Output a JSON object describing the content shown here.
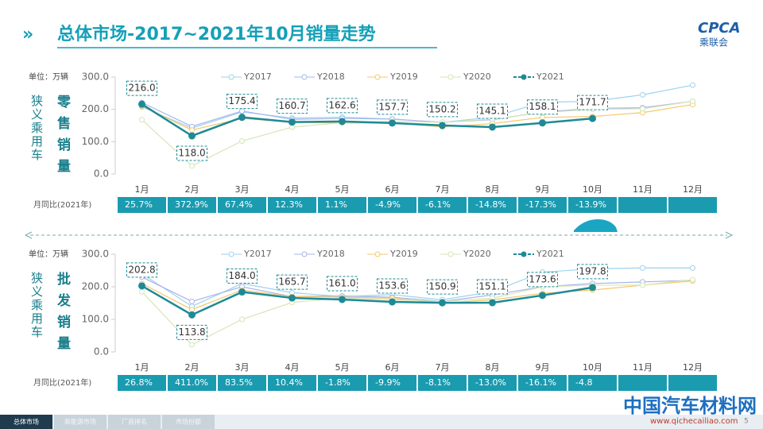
{
  "header": {
    "title": "总体市场-2017~2021年10月销量走势",
    "logo": "CPCA",
    "logo_sub": "乘联会"
  },
  "chart_data": [
    {
      "type": "line",
      "unit": "单位：万辆",
      "group": "狭义乘用车",
      "subtitle": "零售销量",
      "categories": [
        "1月",
        "2月",
        "3月",
        "4月",
        "5月",
        "6月",
        "7月",
        "8月",
        "9月",
        "10月",
        "11月",
        "12月"
      ],
      "ylim": [
        0,
        300
      ],
      "yticks": [
        {
          "value": 0,
          "label": "0.0"
        },
        {
          "value": 100,
          "label": "100.0"
        },
        {
          "value": 200,
          "label": "200.0"
        },
        {
          "value": 300,
          "label": "300.0"
        }
      ],
      "series": [
        {
          "name": "Y2017",
          "color": "#9dd3f0",
          "values": [
            208,
            142,
            192,
            173,
            176,
            170,
            160,
            176,
            222,
            225,
            245,
            275
          ]
        },
        {
          "name": "Y2018",
          "color": "#a9b5e8",
          "values": [
            221,
            147,
            195,
            169,
            172,
            170,
            160,
            168,
            192,
            203,
            205,
            225
          ]
        },
        {
          "name": "Y2019",
          "color": "#f5c86a",
          "values": [
            210,
            136,
            172,
            160,
            158,
            158,
            146,
            156,
            175,
            178,
            190,
            215
          ]
        },
        {
          "name": "Y2020",
          "color": "#d5e6b5",
          "values": [
            168,
            25,
            102,
            145,
            159,
            163,
            160,
            170,
            190,
            200,
            202,
            225
          ]
        },
        {
          "name": "Y2021",
          "color": "#1e8a96",
          "values": [
            216.0,
            118.0,
            175.4,
            160.7,
            162.6,
            157.7,
            150.2,
            145.1,
            158.1,
            171.7,
            null,
            null
          ],
          "value_labels": [
            "216.0",
            "118.0",
            "175.4",
            "160.7",
            "162.6",
            "157.7",
            "150.2",
            "145.1",
            "158.1",
            "171.7",
            null,
            null
          ]
        }
      ],
      "yoy": {
        "label": "月同比(2021年)",
        "values": [
          "25.7%",
          "372.9%",
          "67.4%",
          "12.3%",
          "1.1%",
          "-4.9%",
          "-6.1%",
          "-14.8%",
          "-17.3%",
          "-13.9%",
          null,
          null
        ]
      }
    },
    {
      "type": "line",
      "unit": "单位：万辆",
      "group": "狭义乘用车",
      "subtitle": "批发销量",
      "categories": [
        "1月",
        "2月",
        "3月",
        "4月",
        "5月",
        "6月",
        "7月",
        "8月",
        "9月",
        "10月",
        "11月",
        "12月"
      ],
      "ylim": [
        0,
        300
      ],
      "yticks": [
        {
          "value": 0,
          "label": "0.0"
        },
        {
          "value": 100,
          "label": "100.0"
        },
        {
          "value": 200,
          "label": "200.0"
        },
        {
          "value": 300,
          "label": "300.0"
        }
      ],
      "series": [
        {
          "name": "Y2017",
          "color": "#9dd3f0",
          "values": [
            240,
            140,
            210,
            182,
            170,
            176,
            160,
            185,
            245,
            255,
            258,
            258
          ]
        },
        {
          "name": "Y2018",
          "color": "#a9b5e8",
          "values": [
            230,
            155,
            200,
            170,
            172,
            168,
            155,
            175,
            200,
            210,
            215,
            220
          ]
        },
        {
          "name": "Y2019",
          "color": "#f5c86a",
          "values": [
            210,
            130,
            190,
            170,
            168,
            165,
            150,
            160,
            180,
            190,
            205,
            218
          ]
        },
        {
          "name": "Y2020",
          "color": "#d5e6b5",
          "values": [
            185,
            22,
            100,
            152,
            166,
            160,
            155,
            165,
            200,
            205,
            205,
            222
          ]
        },
        {
          "name": "Y2021",
          "color": "#1e8a96",
          "values": [
            202.8,
            113.8,
            184.0,
            165.7,
            161.0,
            153.6,
            150.9,
            151.1,
            173.6,
            197.8,
            null,
            null
          ],
          "value_labels": [
            "202.8",
            "113.8",
            "184.0",
            "165.7",
            "161.0",
            "153.6",
            "150.9",
            "151.1",
            "173.6",
            "197.8",
            null,
            null
          ]
        }
      ],
      "yoy": {
        "label": "月同比(2021年)",
        "values": [
          "26.8%",
          "411.0%",
          "83.5%",
          "10.4%",
          "-1.8%",
          "-9.9%",
          "-8.1%",
          "-13.0%",
          "-16.1%",
          "-4.8",
          null,
          null
        ]
      }
    }
  ],
  "footer": {
    "tabs": [
      "总体市场",
      "新能源市场",
      "厂商排名",
      "市场份额"
    ],
    "page": "5",
    "watermark": "中国汽车材料网",
    "watermark_url": "www.qichecailiao.com"
  }
}
